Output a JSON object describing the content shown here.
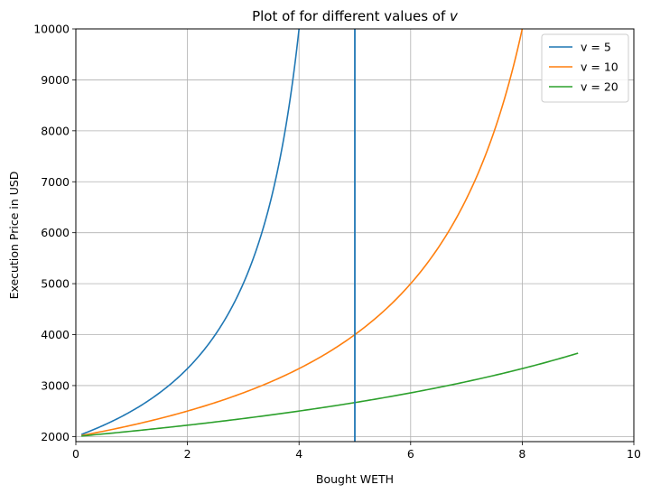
{
  "chart_data": {
    "type": "line",
    "title_main": "Plot of for different values of ",
    "title_var": "v",
    "xlabel": "Bought WETH",
    "ylabel": "Execution Price in USD",
    "xlim": [
      0,
      10
    ],
    "ylim": [
      1900,
      10000
    ],
    "xticks": [
      0,
      2,
      4,
      6,
      8,
      10
    ],
    "yticks": [
      2000,
      3000,
      4000,
      5000,
      6000,
      7000,
      8000,
      9000,
      10000
    ],
    "grid": true,
    "legend_position": "top-right",
    "series": [
      {
        "name": "v = 5",
        "color": "#1f77b4",
        "x": [
          0.1,
          0.5,
          1.0,
          1.5,
          2.0,
          2.5,
          3.0,
          3.25,
          3.5,
          3.75,
          4.0
        ],
        "y": [
          2041,
          2222,
          2500,
          2857,
          3333,
          4000,
          5000,
          5714,
          6667,
          8000,
          10000
        ]
      },
      {
        "name": "v = 10",
        "color": "#ff7f0e",
        "x": [
          0.1,
          1.0,
          2.0,
          3.0,
          4.0,
          5.0,
          6.0,
          6.5,
          7.0,
          7.5,
          8.0
        ],
        "y": [
          2020,
          2222,
          2500,
          2857,
          3333,
          4000,
          5000,
          5714,
          6667,
          8000,
          10000
        ]
      },
      {
        "name": "v = 20",
        "color": "#2ca02c",
        "x": [
          0.1,
          1.0,
          2.0,
          3.0,
          4.0,
          5.0,
          6.0,
          7.0,
          8.0,
          9.0
        ],
        "y": [
          2010,
          2105,
          2222,
          2353,
          2500,
          2667,
          2857,
          3077,
          3333,
          3636
        ]
      }
    ],
    "vertical_line": {
      "x": 5,
      "color": "#1f77b4"
    }
  }
}
